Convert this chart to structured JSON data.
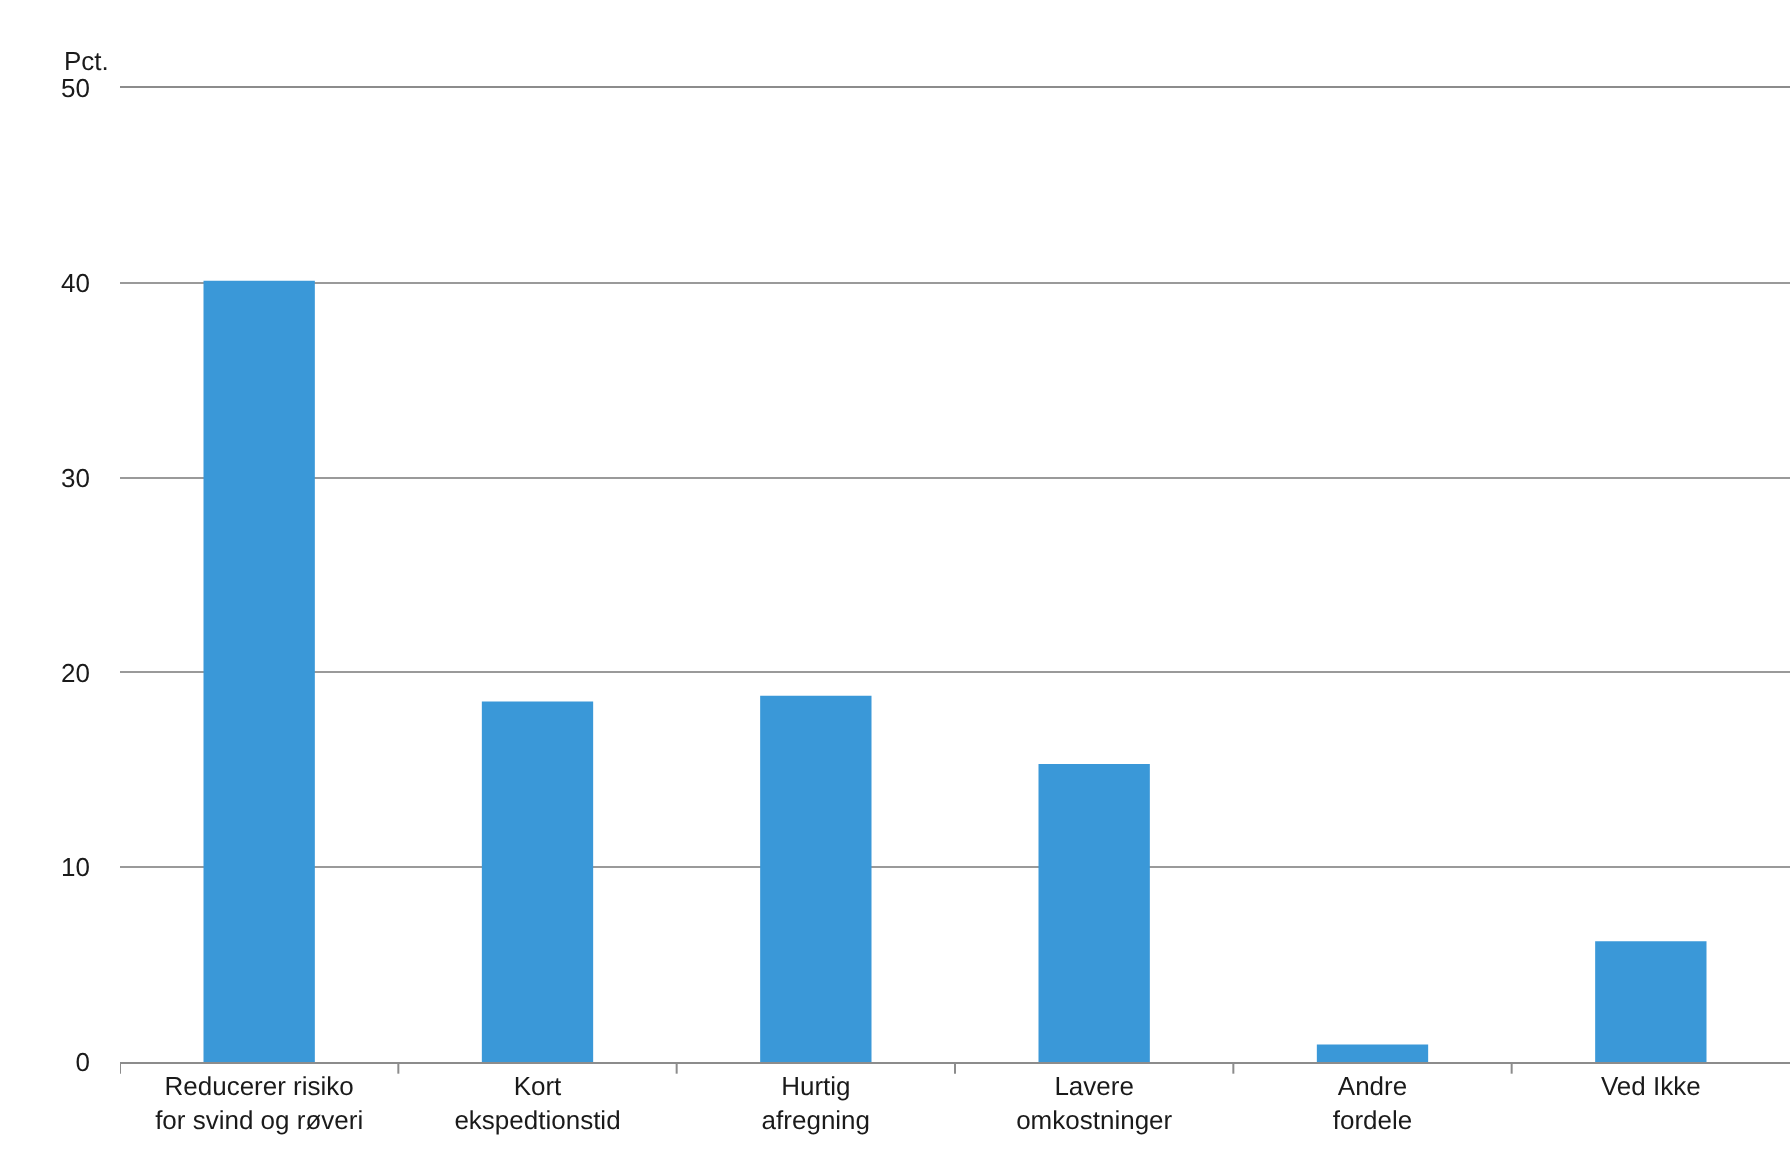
{
  "chart_data": {
    "type": "bar",
    "ylabel": "Pct.",
    "categories": [
      "Reducerer risiko\nfor svind og røveri",
      "Kort\nekspedtionstid",
      "Hurtig\nafregning",
      "Lavere\nomkostninger",
      "Andre\nfordele",
      "Ved Ikke"
    ],
    "values": [
      40.1,
      18.5,
      18.8,
      15.3,
      0.9,
      6.2
    ],
    "color": "#3a98d8",
    "ylim": [
      0,
      50
    ],
    "yticks": [
      0,
      10,
      20,
      30,
      40,
      50
    ],
    "grid": "y",
    "legend": false
  }
}
